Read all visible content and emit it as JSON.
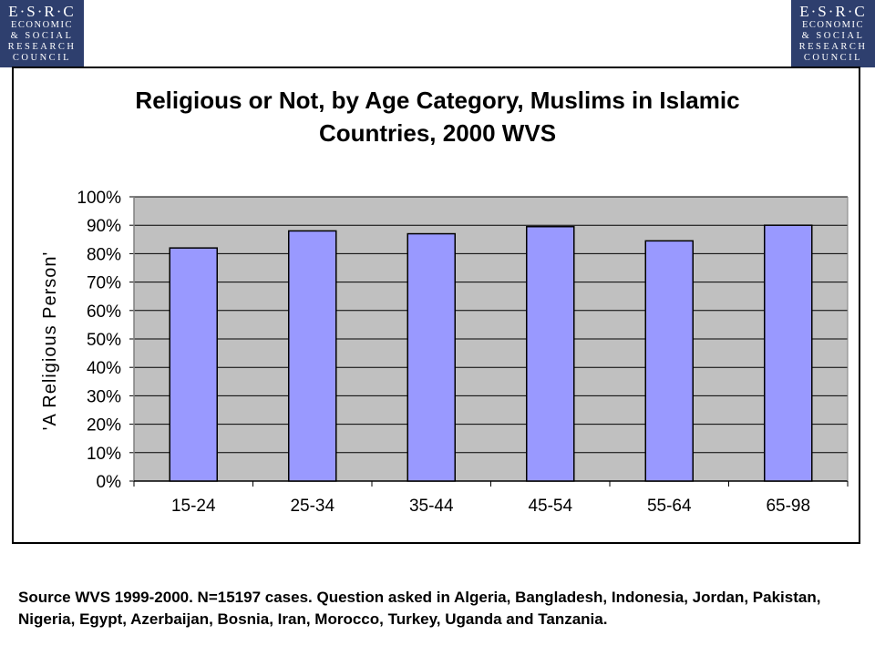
{
  "logo": {
    "line1": "E·S·R·C",
    "line2": "ECONOMIC",
    "line3": "& SOCIAL",
    "line4": "RESEARCH",
    "line5": "COUNCIL"
  },
  "chart_data": {
    "type": "bar",
    "title_line1": "Religious or Not, by Age Category, Muslims in Islamic",
    "title_line2": "Countries, 2000 WVS",
    "ylabel": "'A Religious Person'",
    "xlabel": "",
    "categories": [
      "15-24",
      "25-34",
      "35-44",
      "45-54",
      "55-64",
      "65-98"
    ],
    "values": [
      82,
      88,
      87,
      89.5,
      84.5,
      90
    ],
    "ylim": [
      0,
      100
    ],
    "yticks": [
      "0%",
      "10%",
      "20%",
      "30%",
      "40%",
      "50%",
      "60%",
      "70%",
      "80%",
      "90%",
      "100%"
    ],
    "grid": true,
    "colors": {
      "bar": "#9999ff",
      "plot_bg": "#c0c0c0",
      "grid": "#000000"
    }
  },
  "footer": {
    "source": "Source WVS 1999-2000. N=15197 cases. Question asked in Algeria, Bangladesh, Indonesia, Jordan, Pakistan, Nigeria, Egypt, Azerbaijan, Bosnia, Iran, Morocco, Turkey, Uganda and Tanzania."
  }
}
